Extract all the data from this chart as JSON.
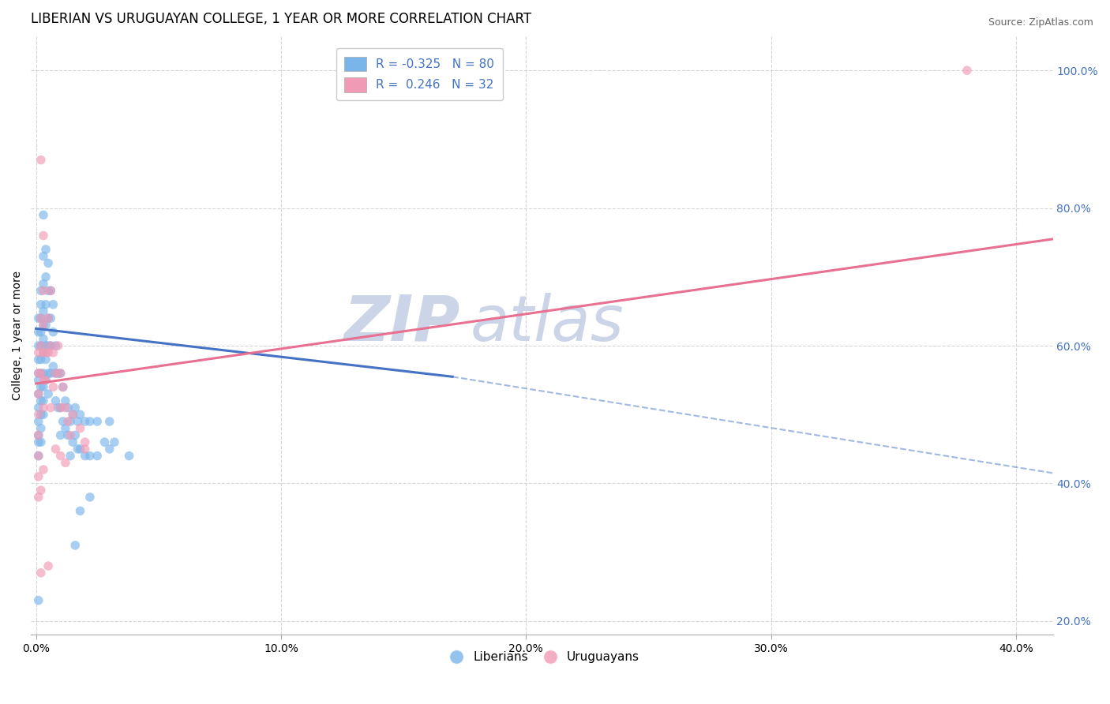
{
  "title": "LIBERIAN VS URUGUAYAN COLLEGE, 1 YEAR OR MORE CORRELATION CHART",
  "source": "Source: ZipAtlas.com",
  "ylabel": "College, 1 year or more",
  "xlim": [
    -0.002,
    0.415
  ],
  "ylim": [
    0.18,
    1.05
  ],
  "xtick_vals": [
    0.0,
    0.1,
    0.2,
    0.3,
    0.4
  ],
  "ytick_vals": [
    0.2,
    0.4,
    0.6,
    0.8,
    1.0
  ],
  "liberian_dots": [
    [
      0.001,
      0.62
    ],
    [
      0.001,
      0.64
    ],
    [
      0.001,
      0.6
    ],
    [
      0.001,
      0.58
    ],
    [
      0.001,
      0.56
    ],
    [
      0.001,
      0.55
    ],
    [
      0.001,
      0.53
    ],
    [
      0.001,
      0.51
    ],
    [
      0.001,
      0.49
    ],
    [
      0.001,
      0.47
    ],
    [
      0.001,
      0.46
    ],
    [
      0.001,
      0.44
    ],
    [
      0.002,
      0.68
    ],
    [
      0.002,
      0.66
    ],
    [
      0.002,
      0.64
    ],
    [
      0.002,
      0.62
    ],
    [
      0.002,
      0.6
    ],
    [
      0.002,
      0.58
    ],
    [
      0.002,
      0.56
    ],
    [
      0.002,
      0.54
    ],
    [
      0.002,
      0.52
    ],
    [
      0.002,
      0.5
    ],
    [
      0.002,
      0.48
    ],
    [
      0.002,
      0.46
    ],
    [
      0.003,
      0.79
    ],
    [
      0.003,
      0.73
    ],
    [
      0.003,
      0.69
    ],
    [
      0.003,
      0.65
    ],
    [
      0.003,
      0.63
    ],
    [
      0.003,
      0.61
    ],
    [
      0.003,
      0.59
    ],
    [
      0.003,
      0.56
    ],
    [
      0.003,
      0.54
    ],
    [
      0.003,
      0.52
    ],
    [
      0.003,
      0.5
    ],
    [
      0.004,
      0.74
    ],
    [
      0.004,
      0.7
    ],
    [
      0.004,
      0.66
    ],
    [
      0.004,
      0.63
    ],
    [
      0.004,
      0.6
    ],
    [
      0.004,
      0.58
    ],
    [
      0.004,
      0.55
    ],
    [
      0.005,
      0.72
    ],
    [
      0.005,
      0.68
    ],
    [
      0.005,
      0.64
    ],
    [
      0.005,
      0.6
    ],
    [
      0.005,
      0.56
    ],
    [
      0.005,
      0.53
    ],
    [
      0.006,
      0.68
    ],
    [
      0.006,
      0.64
    ],
    [
      0.006,
      0.6
    ],
    [
      0.006,
      0.56
    ],
    [
      0.007,
      0.66
    ],
    [
      0.007,
      0.62
    ],
    [
      0.007,
      0.57
    ],
    [
      0.008,
      0.6
    ],
    [
      0.008,
      0.56
    ],
    [
      0.008,
      0.52
    ],
    [
      0.009,
      0.56
    ],
    [
      0.009,
      0.51
    ],
    [
      0.01,
      0.56
    ],
    [
      0.01,
      0.51
    ],
    [
      0.01,
      0.47
    ],
    [
      0.011,
      0.54
    ],
    [
      0.011,
      0.49
    ],
    [
      0.012,
      0.52
    ],
    [
      0.012,
      0.48
    ],
    [
      0.013,
      0.51
    ],
    [
      0.013,
      0.47
    ],
    [
      0.014,
      0.49
    ],
    [
      0.014,
      0.44
    ],
    [
      0.015,
      0.5
    ],
    [
      0.015,
      0.46
    ],
    [
      0.016,
      0.51
    ],
    [
      0.016,
      0.47
    ],
    [
      0.017,
      0.49
    ],
    [
      0.017,
      0.45
    ],
    [
      0.018,
      0.5
    ],
    [
      0.018,
      0.45
    ],
    [
      0.02,
      0.49
    ],
    [
      0.02,
      0.44
    ],
    [
      0.022,
      0.49
    ],
    [
      0.022,
      0.44
    ],
    [
      0.025,
      0.49
    ],
    [
      0.025,
      0.44
    ],
    [
      0.028,
      0.46
    ],
    [
      0.03,
      0.49
    ],
    [
      0.03,
      0.45
    ],
    [
      0.032,
      0.46
    ],
    [
      0.038,
      0.44
    ],
    [
      0.016,
      0.31
    ],
    [
      0.018,
      0.36
    ],
    [
      0.022,
      0.38
    ],
    [
      0.001,
      0.23
    ]
  ],
  "uruguayan_dots": [
    [
      0.001,
      0.59
    ],
    [
      0.001,
      0.56
    ],
    [
      0.001,
      0.53
    ],
    [
      0.001,
      0.5
    ],
    [
      0.001,
      0.47
    ],
    [
      0.001,
      0.44
    ],
    [
      0.001,
      0.41
    ],
    [
      0.001,
      0.38
    ],
    [
      0.002,
      0.64
    ],
    [
      0.002,
      0.6
    ],
    [
      0.002,
      0.56
    ],
    [
      0.003,
      0.68
    ],
    [
      0.003,
      0.63
    ],
    [
      0.003,
      0.59
    ],
    [
      0.003,
      0.55
    ],
    [
      0.003,
      0.51
    ],
    [
      0.004,
      0.59
    ],
    [
      0.004,
      0.55
    ],
    [
      0.005,
      0.64
    ],
    [
      0.005,
      0.59
    ],
    [
      0.006,
      0.6
    ],
    [
      0.007,
      0.59
    ],
    [
      0.007,
      0.54
    ],
    [
      0.008,
      0.56
    ],
    [
      0.009,
      0.6
    ],
    [
      0.01,
      0.56
    ],
    [
      0.01,
      0.51
    ],
    [
      0.011,
      0.54
    ],
    [
      0.012,
      0.51
    ],
    [
      0.013,
      0.49
    ],
    [
      0.015,
      0.5
    ],
    [
      0.02,
      0.45
    ],
    [
      0.38,
      1.0
    ],
    [
      0.002,
      0.87
    ],
    [
      0.003,
      0.76
    ],
    [
      0.006,
      0.68
    ],
    [
      0.01,
      0.44
    ],
    [
      0.014,
      0.47
    ],
    [
      0.018,
      0.48
    ],
    [
      0.02,
      0.46
    ],
    [
      0.012,
      0.43
    ],
    [
      0.006,
      0.51
    ],
    [
      0.002,
      0.39
    ],
    [
      0.003,
      0.42
    ],
    [
      0.008,
      0.45
    ],
    [
      0.002,
      0.27
    ],
    [
      0.005,
      0.28
    ]
  ],
  "blue_line_solid": [
    [
      0.0,
      0.625
    ],
    [
      0.17,
      0.555
    ]
  ],
  "blue_line_dash": [
    [
      0.17,
      0.555
    ],
    [
      0.415,
      0.415
    ]
  ],
  "pink_line": [
    [
      0.0,
      0.545
    ],
    [
      0.415,
      0.755
    ]
  ],
  "dot_size": 70,
  "liberian_color": "#7ab5ea",
  "uruguayan_color": "#f09ab5",
  "blue_line_color": "#4472c4",
  "pink_line_color": "#e87090",
  "watermark_color": "#ccd5e8",
  "title_fontsize": 12,
  "axis_label_fontsize": 10,
  "tick_fontsize": 10,
  "legend_fontsize": 11,
  "source_fontsize": 9,
  "ytick_color": "#4472c4",
  "legend_R_color": "#4472c4"
}
